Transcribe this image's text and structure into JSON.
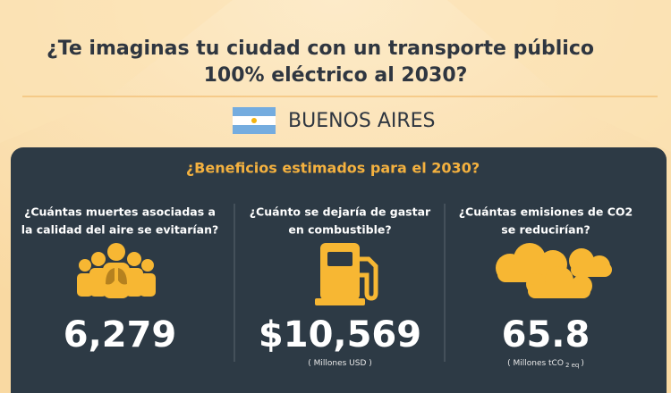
{
  "header": {
    "title_lines": [
      "¿Te imaginas tu ciudad con un transporte público",
      "100% eléctrico al 2030?"
    ],
    "city": "BUENOS AIRES"
  },
  "panel": {
    "heading": "¿Beneficios estimados para el 2030?",
    "columns": [
      {
        "question_lines": [
          "¿Cuántas muertes asociadas a",
          "la calidad del aire se evitarían?"
        ],
        "value": "6,279"
      },
      {
        "question_lines": [
          "¿Cuánto se dejaría de gastar",
          "en combustible?"
        ],
        "value": "$10,569",
        "unit_parts": [
          "( Millones USD )"
        ]
      },
      {
        "question_lines": [
          "¿Cuántas emisiones de CO2",
          "se reducirían?"
        ],
        "value": "65.8",
        "unit_parts": [
          "( Millones tCO",
          "2 eq",
          ")"
        ]
      }
    ]
  }
}
